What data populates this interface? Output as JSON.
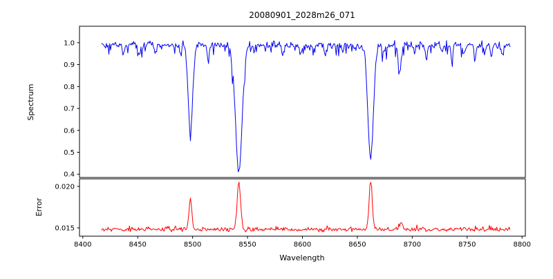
{
  "chart_data": {
    "type": "line",
    "title": "20080901_2028m26_071",
    "xlabel": "Wavelength",
    "background_color": "#ffffff",
    "axis_color": "#000000",
    "xlim": [
      8397,
      8803
    ],
    "xticks": [
      8400,
      8450,
      8500,
      8550,
      8600,
      8650,
      8700,
      8750,
      8800
    ],
    "x_data_range": [
      8417,
      8789
    ],
    "x_step": 0.75,
    "noise_seed": 42,
    "legend": "none",
    "grid": false,
    "panels": [
      {
        "name": "spectrum",
        "ylabel": "Spectrum",
        "color": "#0000ee",
        "ylim": [
          0.385,
          1.075
        ],
        "yticks": [
          0.4,
          0.5,
          0.6,
          0.7,
          0.8,
          0.9,
          1.0
        ],
        "ytick_labels": [
          "0.4",
          "0.5",
          "0.6",
          "0.7",
          "0.8",
          "0.9",
          "1.0"
        ],
        "continuum": 0.99,
        "noise_sigma": 0.008,
        "dip_probability": 0.12,
        "dip_max": 0.05,
        "absorption_lines": [
          {
            "center": 8498.0,
            "depth": 0.41,
            "width": 2.0
          },
          {
            "center": 8542.1,
            "depth": 0.585,
            "width": 3.0
          },
          {
            "center": 8662.1,
            "depth": 0.52,
            "width": 2.5
          }
        ],
        "minor_lines": [
          {
            "center": 8437.0,
            "depth": 0.035,
            "width": 1.0
          },
          {
            "center": 8451.0,
            "depth": 0.05,
            "width": 1.1
          },
          {
            "center": 8466.0,
            "depth": 0.04,
            "width": 1.0
          },
          {
            "center": 8489.0,
            "depth": 0.04,
            "width": 0.9
          },
          {
            "center": 8514.0,
            "depth": 0.055,
            "width": 1.1
          },
          {
            "center": 8536.0,
            "depth": 0.04,
            "width": 0.8
          },
          {
            "center": 8556.0,
            "depth": 0.035,
            "width": 0.9
          },
          {
            "center": 8571.0,
            "depth": 0.03,
            "width": 0.9
          },
          {
            "center": 8582.0,
            "depth": 0.04,
            "width": 1.0
          },
          {
            "center": 8598.0,
            "depth": 0.045,
            "width": 1.0
          },
          {
            "center": 8611.0,
            "depth": 0.03,
            "width": 0.9
          },
          {
            "center": 8621.0,
            "depth": 0.045,
            "width": 1.0
          },
          {
            "center": 8637.0,
            "depth": 0.03,
            "width": 0.9
          },
          {
            "center": 8648.0,
            "depth": 0.03,
            "width": 0.8
          },
          {
            "center": 8674.0,
            "depth": 0.04,
            "width": 0.9
          },
          {
            "center": 8688.6,
            "depth": 0.115,
            "width": 1.4
          },
          {
            "center": 8702.0,
            "depth": 0.04,
            "width": 0.9
          },
          {
            "center": 8713.0,
            "depth": 0.05,
            "width": 1.0
          },
          {
            "center": 8727.0,
            "depth": 0.04,
            "width": 0.9
          },
          {
            "center": 8736.0,
            "depth": 0.05,
            "width": 1.0
          },
          {
            "center": 8747.0,
            "depth": 0.035,
            "width": 0.9
          },
          {
            "center": 8757.0,
            "depth": 0.06,
            "width": 1.0
          },
          {
            "center": 8766.0,
            "depth": 0.04,
            "width": 0.9
          },
          {
            "center": 8772.0,
            "depth": 0.05,
            "width": 1.0
          },
          {
            "center": 8782.0,
            "depth": 0.04,
            "width": 0.9
          }
        ]
      },
      {
        "name": "error",
        "ylabel": "Error",
        "color": "#ff0000",
        "ylim": [
          0.014,
          0.0209
        ],
        "yticks": [
          0.015,
          0.02
        ],
        "ytick_labels": [
          "0.015",
          "0.020"
        ],
        "baseline": 0.0148,
        "noise_sigma": 0.00012,
        "spike_probability": 0.1,
        "spike_max": 0.0004,
        "peaks": [
          {
            "center": 8498.0,
            "amplitude": 0.0037,
            "width": 1.3
          },
          {
            "center": 8542.1,
            "amplitude": 0.0056,
            "width": 1.6
          },
          {
            "center": 8662.1,
            "amplitude": 0.0058,
            "width": 1.4
          },
          {
            "center": 8690.0,
            "amplitude": 0.0008,
            "width": 1.2
          }
        ]
      }
    ]
  }
}
